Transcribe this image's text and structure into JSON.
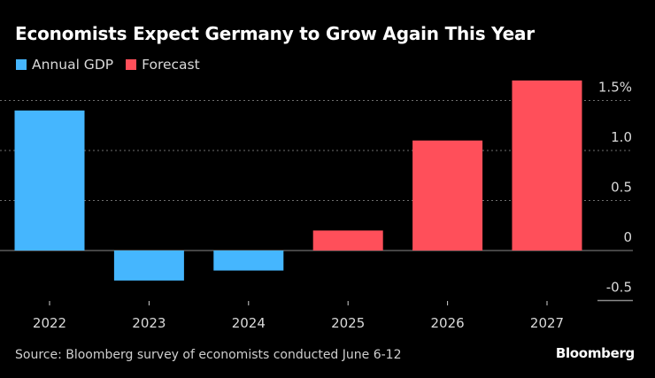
{
  "chart_data": {
    "type": "bar",
    "title": "Economists Expect Germany to Grow Again This Year",
    "categories": [
      "2022",
      "2023",
      "2024",
      "2025",
      "2026",
      "2027"
    ],
    "series": [
      {
        "name": "Annual GDP",
        "color": "#45b6fe",
        "values": [
          1.4,
          -0.3,
          -0.2,
          null,
          null,
          null
        ]
      },
      {
        "name": "Forecast",
        "color": "#ff4f5a",
        "values": [
          null,
          null,
          null,
          0.2,
          1.1,
          1.7
        ]
      }
    ],
    "xlabel": "",
    "ylabel": "",
    "ylim": [
      -0.5,
      1.75
    ],
    "yticks": [
      {
        "value": 1.5,
        "label": "1.5%"
      },
      {
        "value": 1.0,
        "label": "1.0"
      },
      {
        "value": 0.5,
        "label": "0.5"
      },
      {
        "value": 0,
        "label": "0"
      },
      {
        "value": -0.5,
        "label": "-0.5"
      }
    ],
    "grid": true,
    "legend_position": "top-left",
    "axis_side": "right"
  },
  "footer": {
    "source": "Source: Bloomberg survey of economists conducted June 6-12",
    "brand": "Bloomberg"
  }
}
